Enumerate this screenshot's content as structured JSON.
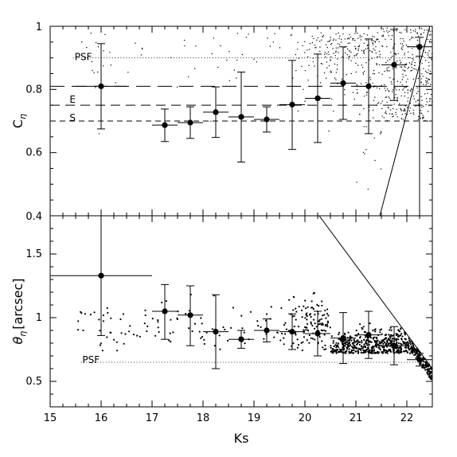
{
  "chart_data": [
    {
      "panel": "top",
      "type": "scatter",
      "ylabel_main": "C",
      "ylabel_sub": "η",
      "xlim": [
        15,
        22.5
      ],
      "ylim": [
        0.4,
        1.0
      ],
      "yticks": [
        0.4,
        0.6,
        0.8,
        1.0
      ],
      "ytick_labels": [
        "0.4",
        "0.6",
        "0.8",
        "1"
      ],
      "annotations": [
        {
          "text": "PSF",
          "x": 15.45,
          "y": 0.903
        },
        {
          "text": "E",
          "x": 15.35,
          "y": 0.768
        },
        {
          "text": "S",
          "x": 15.35,
          "y": 0.71
        }
      ],
      "reference_lines": [
        {
          "name": "PSF",
          "style": "dotted",
          "y": 0.9,
          "x": [
            15.45,
            22.5
          ]
        },
        {
          "name": "long-dash",
          "style": "long-dash",
          "y": 0.81,
          "x": [
            15,
            22.5
          ]
        },
        {
          "name": "E",
          "style": "dash",
          "y": 0.75,
          "x": [
            15,
            22.5
          ]
        },
        {
          "name": "S",
          "style": "short-dash",
          "y": 0.7,
          "x": [
            15,
            22.5
          ]
        }
      ],
      "solid_lines": [
        {
          "points": [
            [
              21.47,
              0.4
            ],
            [
              22.45,
              1.0
            ]
          ]
        },
        {
          "points": [
            [
              22.25,
              0.4
            ],
            [
              22.25,
              0.93
            ]
          ]
        }
      ],
      "binned_points": [
        {
          "x": 16.0,
          "y": 0.81,
          "xerr": 0.5,
          "yerr": [
            0.675,
            0.945
          ]
        },
        {
          "x": 17.25,
          "y": 0.687,
          "xerr": 0.25,
          "yerr": [
            0.635,
            0.738
          ]
        },
        {
          "x": 17.75,
          "y": 0.695,
          "xerr": 0.25,
          "yerr": [
            0.645,
            0.745
          ]
        },
        {
          "x": 18.25,
          "y": 0.728,
          "xerr": 0.25,
          "yerr": [
            0.648,
            0.808
          ]
        },
        {
          "x": 18.75,
          "y": 0.713,
          "xerr": 0.25,
          "yerr": [
            0.57,
            0.855
          ]
        },
        {
          "x": 19.25,
          "y": 0.705,
          "xerr": 0.25,
          "yerr": [
            0.665,
            0.745
          ]
        },
        {
          "x": 19.75,
          "y": 0.752,
          "xerr": 0.25,
          "yerr": [
            0.61,
            0.892
          ]
        },
        {
          "x": 20.25,
          "y": 0.772,
          "xerr": 0.25,
          "yerr": [
            0.632,
            0.912
          ]
        },
        {
          "x": 20.75,
          "y": 0.82,
          "xerr": 0.25,
          "yerr": [
            0.705,
            0.935
          ]
        },
        {
          "x": 21.25,
          "y": 0.81,
          "xerr": 0.25,
          "yerr": [
            0.66,
            0.96
          ]
        },
        {
          "x": 21.75,
          "y": 0.878,
          "xerr": 0.25,
          "yerr": [
            0.765,
            0.99
          ]
        },
        {
          "x": 22.25,
          "y": 0.935,
          "xerr": 0.25,
          "yerr": [
            0.905,
            0.965
          ]
        }
      ],
      "field_points_count": 650
    },
    {
      "panel": "bottom",
      "type": "scatter",
      "xlabel": "Ks",
      "ylabel_main": "θ",
      "ylabel_sub": "η",
      "ylabel_suffix": "[arcsec]",
      "xlim": [
        15,
        22.5
      ],
      "ylim": [
        0.3,
        1.8
      ],
      "xticks": [
        15,
        16,
        17,
        18,
        19,
        20,
        21,
        22
      ],
      "xtick_labels": [
        "15",
        "16",
        "17",
        "18",
        "19",
        "20",
        "21",
        "22"
      ],
      "yticks": [
        0.5,
        1.0,
        1.5
      ],
      "ytick_labels": [
        "0.5",
        "1",
        "1.5"
      ],
      "annotations": [
        {
          "text": "PSF",
          "x": 15.6,
          "y": 0.67
        }
      ],
      "reference_lines": [
        {
          "name": "PSF",
          "style": "dotted",
          "y": 0.65,
          "x": [
            15.6,
            22.5
          ]
        }
      ],
      "solid_lines": [
        {
          "points": [
            [
              20.28,
              1.8
            ],
            [
              22.5,
              0.6
            ]
          ]
        }
      ],
      "binned_points": [
        {
          "x": 16.0,
          "y": 1.33,
          "xerr": 1.0,
          "yerr": [
            0.86,
            1.8
          ]
        },
        {
          "x": 17.25,
          "y": 1.05,
          "xerr": 0.25,
          "yerr": [
            0.83,
            1.26
          ]
        },
        {
          "x": 17.75,
          "y": 1.02,
          "xerr": 0.25,
          "yerr": [
            0.78,
            1.25
          ]
        },
        {
          "x": 18.25,
          "y": 0.89,
          "xerr": 0.25,
          "yerr": [
            0.6,
            1.18
          ]
        },
        {
          "x": 18.75,
          "y": 0.83,
          "xerr": 0.25,
          "yerr": [
            0.76,
            0.9
          ]
        },
        {
          "x": 19.25,
          "y": 0.9,
          "xerr": 0.25,
          "yerr": [
            0.81,
            0.99
          ]
        },
        {
          "x": 19.75,
          "y": 0.89,
          "xerr": 0.25,
          "yerr": [
            0.75,
            1.03
          ]
        },
        {
          "x": 20.25,
          "y": 0.875,
          "xerr": 0.25,
          "yerr": [
            0.7,
            1.05
          ]
        },
        {
          "x": 20.75,
          "y": 0.84,
          "xerr": 0.25,
          "yerr": [
            0.64,
            1.04
          ]
        },
        {
          "x": 21.25,
          "y": 0.865,
          "xerr": 0.25,
          "yerr": [
            0.68,
            1.05
          ]
        },
        {
          "x": 21.75,
          "y": 0.78,
          "xerr": 0.25,
          "yerr": [
            0.63,
            0.93
          ]
        },
        {
          "x": 22.25,
          "y": 0.67,
          "xerr": 0.25,
          "yerr": [
            0.62,
            0.72
          ]
        }
      ],
      "field_points_count": 900
    }
  ]
}
